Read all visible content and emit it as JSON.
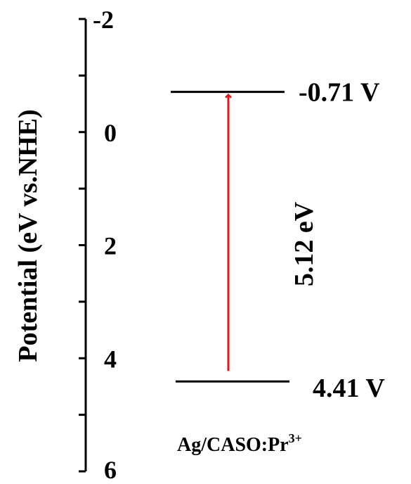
{
  "axis": {
    "label": "Potential (eV vs.NHE)",
    "ticks": [
      "-2",
      "0",
      "2",
      "4",
      "6"
    ],
    "range": [
      -2,
      6
    ]
  },
  "levels": {
    "conduction": {
      "value": -0.71,
      "label": "-0.71 V"
    },
    "valence": {
      "value": 4.41,
      "label": "4.41 V"
    }
  },
  "gap": {
    "label": "5.12 eV"
  },
  "material": {
    "name": "Ag/CASO:Pr",
    "superscript": "3+"
  },
  "colors": {
    "arrow": "#e8141c",
    "line": "#000000"
  }
}
